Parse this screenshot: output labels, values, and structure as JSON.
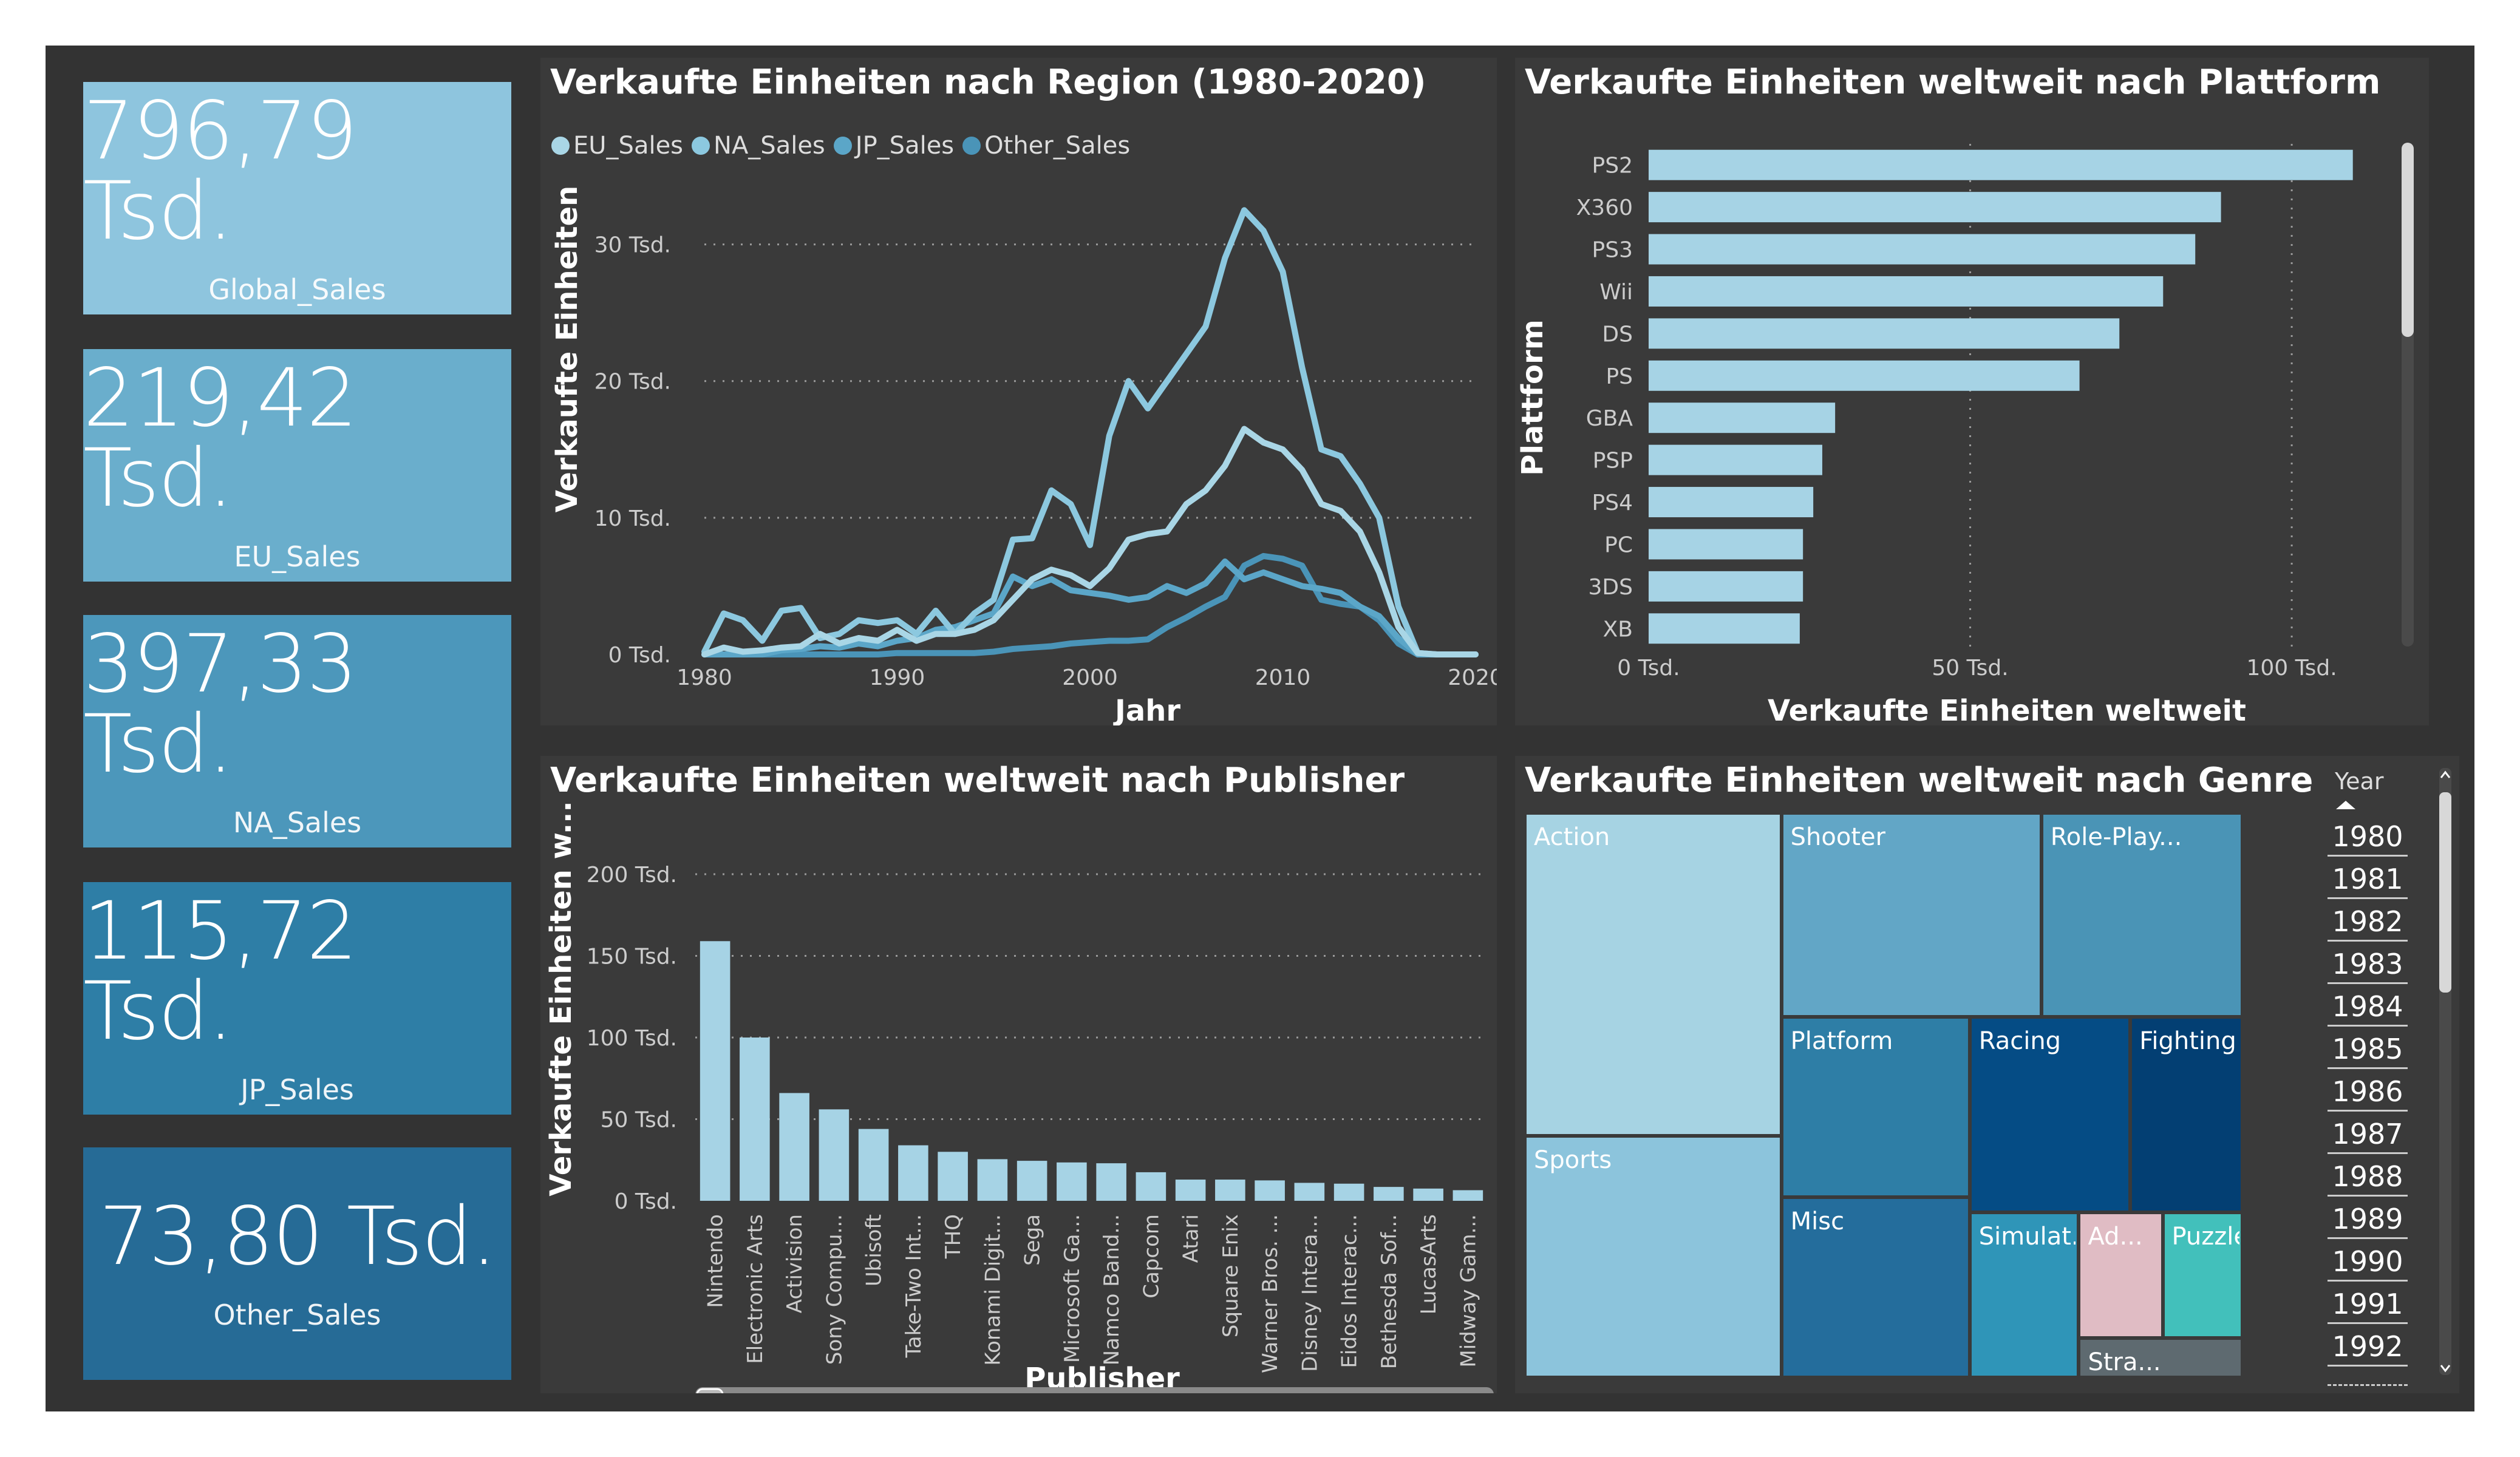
{
  "kpis": [
    {
      "value": "796,79 Tsd.",
      "label": "Global_Sales",
      "color": "#8ec5de"
    },
    {
      "value": "219,42 Tsd.",
      "label": "EU_Sales",
      "color": "#6aaecc"
    },
    {
      "value": "397,33 Tsd.",
      "label": "NA_Sales",
      "color": "#4c97bb"
    },
    {
      "value": "115,72 Tsd.",
      "label": "JP_Sales",
      "color": "#2e7ea6"
    },
    {
      "value": "73,80 Tsd.",
      "label": "Other_Sales",
      "color": "#266b96"
    }
  ],
  "colors": {
    "bar": "#a6d3e5",
    "panel": "#3a3a3a",
    "background": "#333333"
  },
  "region_chart": {
    "title": "Verkaufte Einheiten nach Region (1980-2020)",
    "xlabel": "Jahr",
    "ylabel": "Verkaufte Einheiten",
    "legend": [
      {
        "name": "EU_Sales",
        "color": "#a9d6e6"
      },
      {
        "name": "NA_Sales",
        "color": "#8cc8df"
      },
      {
        "name": "JP_Sales",
        "color": "#5ba6c8"
      },
      {
        "name": "Other_Sales",
        "color": "#4a94b8"
      }
    ],
    "xticks": [
      "1980",
      "1990",
      "2000",
      "2010",
      "2020"
    ],
    "yticks": [
      "0 Tsd.",
      "10 Tsd.",
      "20 Tsd.",
      "30 Tsd."
    ]
  },
  "platform_chart": {
    "title": "Verkaufte Einheiten weltweit nach Plattform",
    "xlabel": "Verkaufte Einheiten weltweit",
    "ylabel": "Plattform",
    "xticks": [
      "0 Tsd.",
      "50 Tsd.",
      "100 Tsd."
    ]
  },
  "publisher_chart": {
    "title": "Verkaufte Einheiten weltweit nach Publisher",
    "xlabel": "Publisher",
    "ylabel": "Verkaufte Einheiten w...",
    "yticks": [
      "0 Tsd.",
      "50 Tsd.",
      "100 Tsd.",
      "150 Tsd.",
      "200 Tsd."
    ]
  },
  "genre_chart": {
    "title": "Verkaufte Einheiten weltweit nach Genre",
    "cells": [
      {
        "label": "Action",
        "value": 166,
        "color": "#a6d3e3"
      },
      {
        "label": "Sports",
        "value": 124,
        "color": "#8cc4dc"
      },
      {
        "label": "Shooter",
        "value": 106,
        "color": "#62a6c6"
      },
      {
        "label": "Role-Play...",
        "value": 82,
        "color": "#4a94b6"
      },
      {
        "label": "Platform",
        "value": 68,
        "color": "#2e7ea6"
      },
      {
        "label": "Misc",
        "value": 68,
        "color": "#246d9c"
      },
      {
        "label": "Racing",
        "value": 63,
        "color": "#054c85"
      },
      {
        "label": "Fighting",
        "value": 44,
        "color": "#033f73"
      },
      {
        "label": "Simulat...",
        "value": 36,
        "color": "#2f95b8"
      },
      {
        "label": "Ad...",
        "value": 21,
        "color": "#e0bcc4"
      },
      {
        "label": "Puzzle",
        "value": 20,
        "color": "#42c0bb"
      },
      {
        "label": "Stra...",
        "value": 13,
        "color": "#5e6a70"
      }
    ]
  },
  "year_slicer": {
    "title": "Year",
    "years": [
      "1980",
      "1981",
      "1982",
      "1983",
      "1984",
      "1985",
      "1986",
      "1987",
      "1988",
      "1989",
      "1990",
      "1991",
      "1992"
    ]
  },
  "chart_data": [
    {
      "type": "line",
      "title": "Verkaufte Einheiten nach Region (1980-2020)",
      "xlabel": "Jahr",
      "ylabel": "Verkaufte Einheiten",
      "xlim": [
        1980,
        2020
      ],
      "ylim": [
        0,
        35000
      ],
      "grid": true,
      "legend": "top-left",
      "x": [
        1980,
        1981,
        1982,
        1983,
        1984,
        1985,
        1986,
        1987,
        1988,
        1989,
        1990,
        1991,
        1992,
        1993,
        1994,
        1995,
        1996,
        1997,
        1998,
        1999,
        2000,
        2001,
        2002,
        2003,
        2004,
        2005,
        2006,
        2007,
        2008,
        2009,
        2010,
        2011,
        2012,
        2013,
        2014,
        2015,
        2016,
        2017,
        2018,
        2019,
        2020
      ],
      "series": [
        {
          "name": "EU_Sales",
          "values": [
            0,
            500,
            200,
            300,
            500,
            600,
            1500,
            800,
            1200,
            1000,
            1800,
            1000,
            1500,
            1500,
            1800,
            2500,
            4000,
            5500,
            6200,
            5800,
            5000,
            6300,
            8400,
            8800,
            9000,
            11000,
            12000,
            13800,
            16500,
            15500,
            15000,
            13500,
            11000,
            10500,
            9000,
            6000,
            2000,
            100,
            0,
            0,
            0
          ]
        },
        {
          "name": "NA_Sales",
          "values": [
            200,
            3000,
            2500,
            1000,
            3200,
            3400,
            1200,
            1500,
            2500,
            2300,
            2500,
            1500,
            3200,
            1500,
            3000,
            4000,
            8400,
            8500,
            12000,
            11000,
            8000,
            16000,
            20000,
            18000,
            20000,
            22000,
            24000,
            29000,
            32500,
            31000,
            28000,
            21000,
            15000,
            14500,
            12500,
            10000,
            3500,
            100,
            0,
            0,
            0
          ]
        },
        {
          "name": "JP_Sales",
          "values": [
            0,
            0,
            0,
            0,
            300,
            400,
            600,
            500,
            800,
            600,
            1000,
            1200,
            1800,
            2000,
            2500,
            3000,
            5700,
            5000,
            5500,
            4700,
            4500,
            4300,
            4000,
            4200,
            5000,
            4500,
            5200,
            6800,
            5500,
            6000,
            5500,
            5000,
            4800,
            4500,
            3500,
            2800,
            1200,
            0,
            0,
            0,
            0
          ]
        },
        {
          "name": "Other_Sales",
          "values": [
            0,
            0,
            0,
            0,
            0,
            0,
            0,
            0,
            0,
            0,
            100,
            100,
            100,
            100,
            100,
            200,
            400,
            500,
            600,
            800,
            900,
            1000,
            1000,
            1100,
            2000,
            2700,
            3500,
            4200,
            6500,
            7200,
            7000,
            6500,
            4000,
            3700,
            3500,
            2500,
            800,
            0,
            0,
            0,
            0
          ]
        }
      ]
    },
    {
      "type": "bar",
      "orientation": "horizontal",
      "title": "Verkaufte Einheiten weltweit nach Plattform",
      "xlabel": "Verkaufte Einheiten weltweit",
      "ylabel": "Plattform",
      "xlim": [
        0,
        110000
      ],
      "categories": [
        "PS2",
        "X360",
        "PS3",
        "Wii",
        "DS",
        "PS",
        "GBA",
        "PSP",
        "PS4",
        "PC",
        "3DS",
        "XB"
      ],
      "values": [
        109500,
        89000,
        85000,
        80000,
        73200,
        67000,
        29000,
        27000,
        25600,
        24000,
        24000,
        23500
      ]
    },
    {
      "type": "bar",
      "title": "Verkaufte Einheiten weltweit nach Publisher",
      "xlabel": "Publisher",
      "ylabel": "Verkaufte Einheiten w...",
      "ylim": [
        0,
        200000
      ],
      "categories": [
        "Nintendo",
        "Electronic Arts",
        "Activision",
        "Sony Compu...",
        "Ubisoft",
        "Take-Two Int...",
        "THQ",
        "Konami Digit...",
        "Sega",
        "Microsoft Ga...",
        "Namco Band...",
        "Capcom",
        "Atari",
        "Square Enix",
        "Warner Bros. ...",
        "Disney Intera...",
        "Eidos Interac...",
        "Bethesda Sof...",
        "LucasArts",
        "Midway Gam..."
      ],
      "values": [
        159000,
        100000,
        66000,
        56000,
        44000,
        34000,
        30000,
        25500,
        24500,
        23500,
        23000,
        17500,
        13000,
        13000,
        12500,
        11000,
        10500,
        8500,
        7500,
        6500
      ]
    },
    {
      "type": "treemap",
      "title": "Verkaufte Einheiten weltweit nach Genre",
      "categories": [
        "Action",
        "Sports",
        "Shooter",
        "Role-Play...",
        "Platform",
        "Misc",
        "Racing",
        "Fighting",
        "Simulat...",
        "Ad...",
        "Puzzle",
        "Stra..."
      ],
      "values": [
        166,
        124,
        106,
        82,
        68,
        68,
        63,
        44,
        36,
        21,
        20,
        13
      ]
    }
  ]
}
